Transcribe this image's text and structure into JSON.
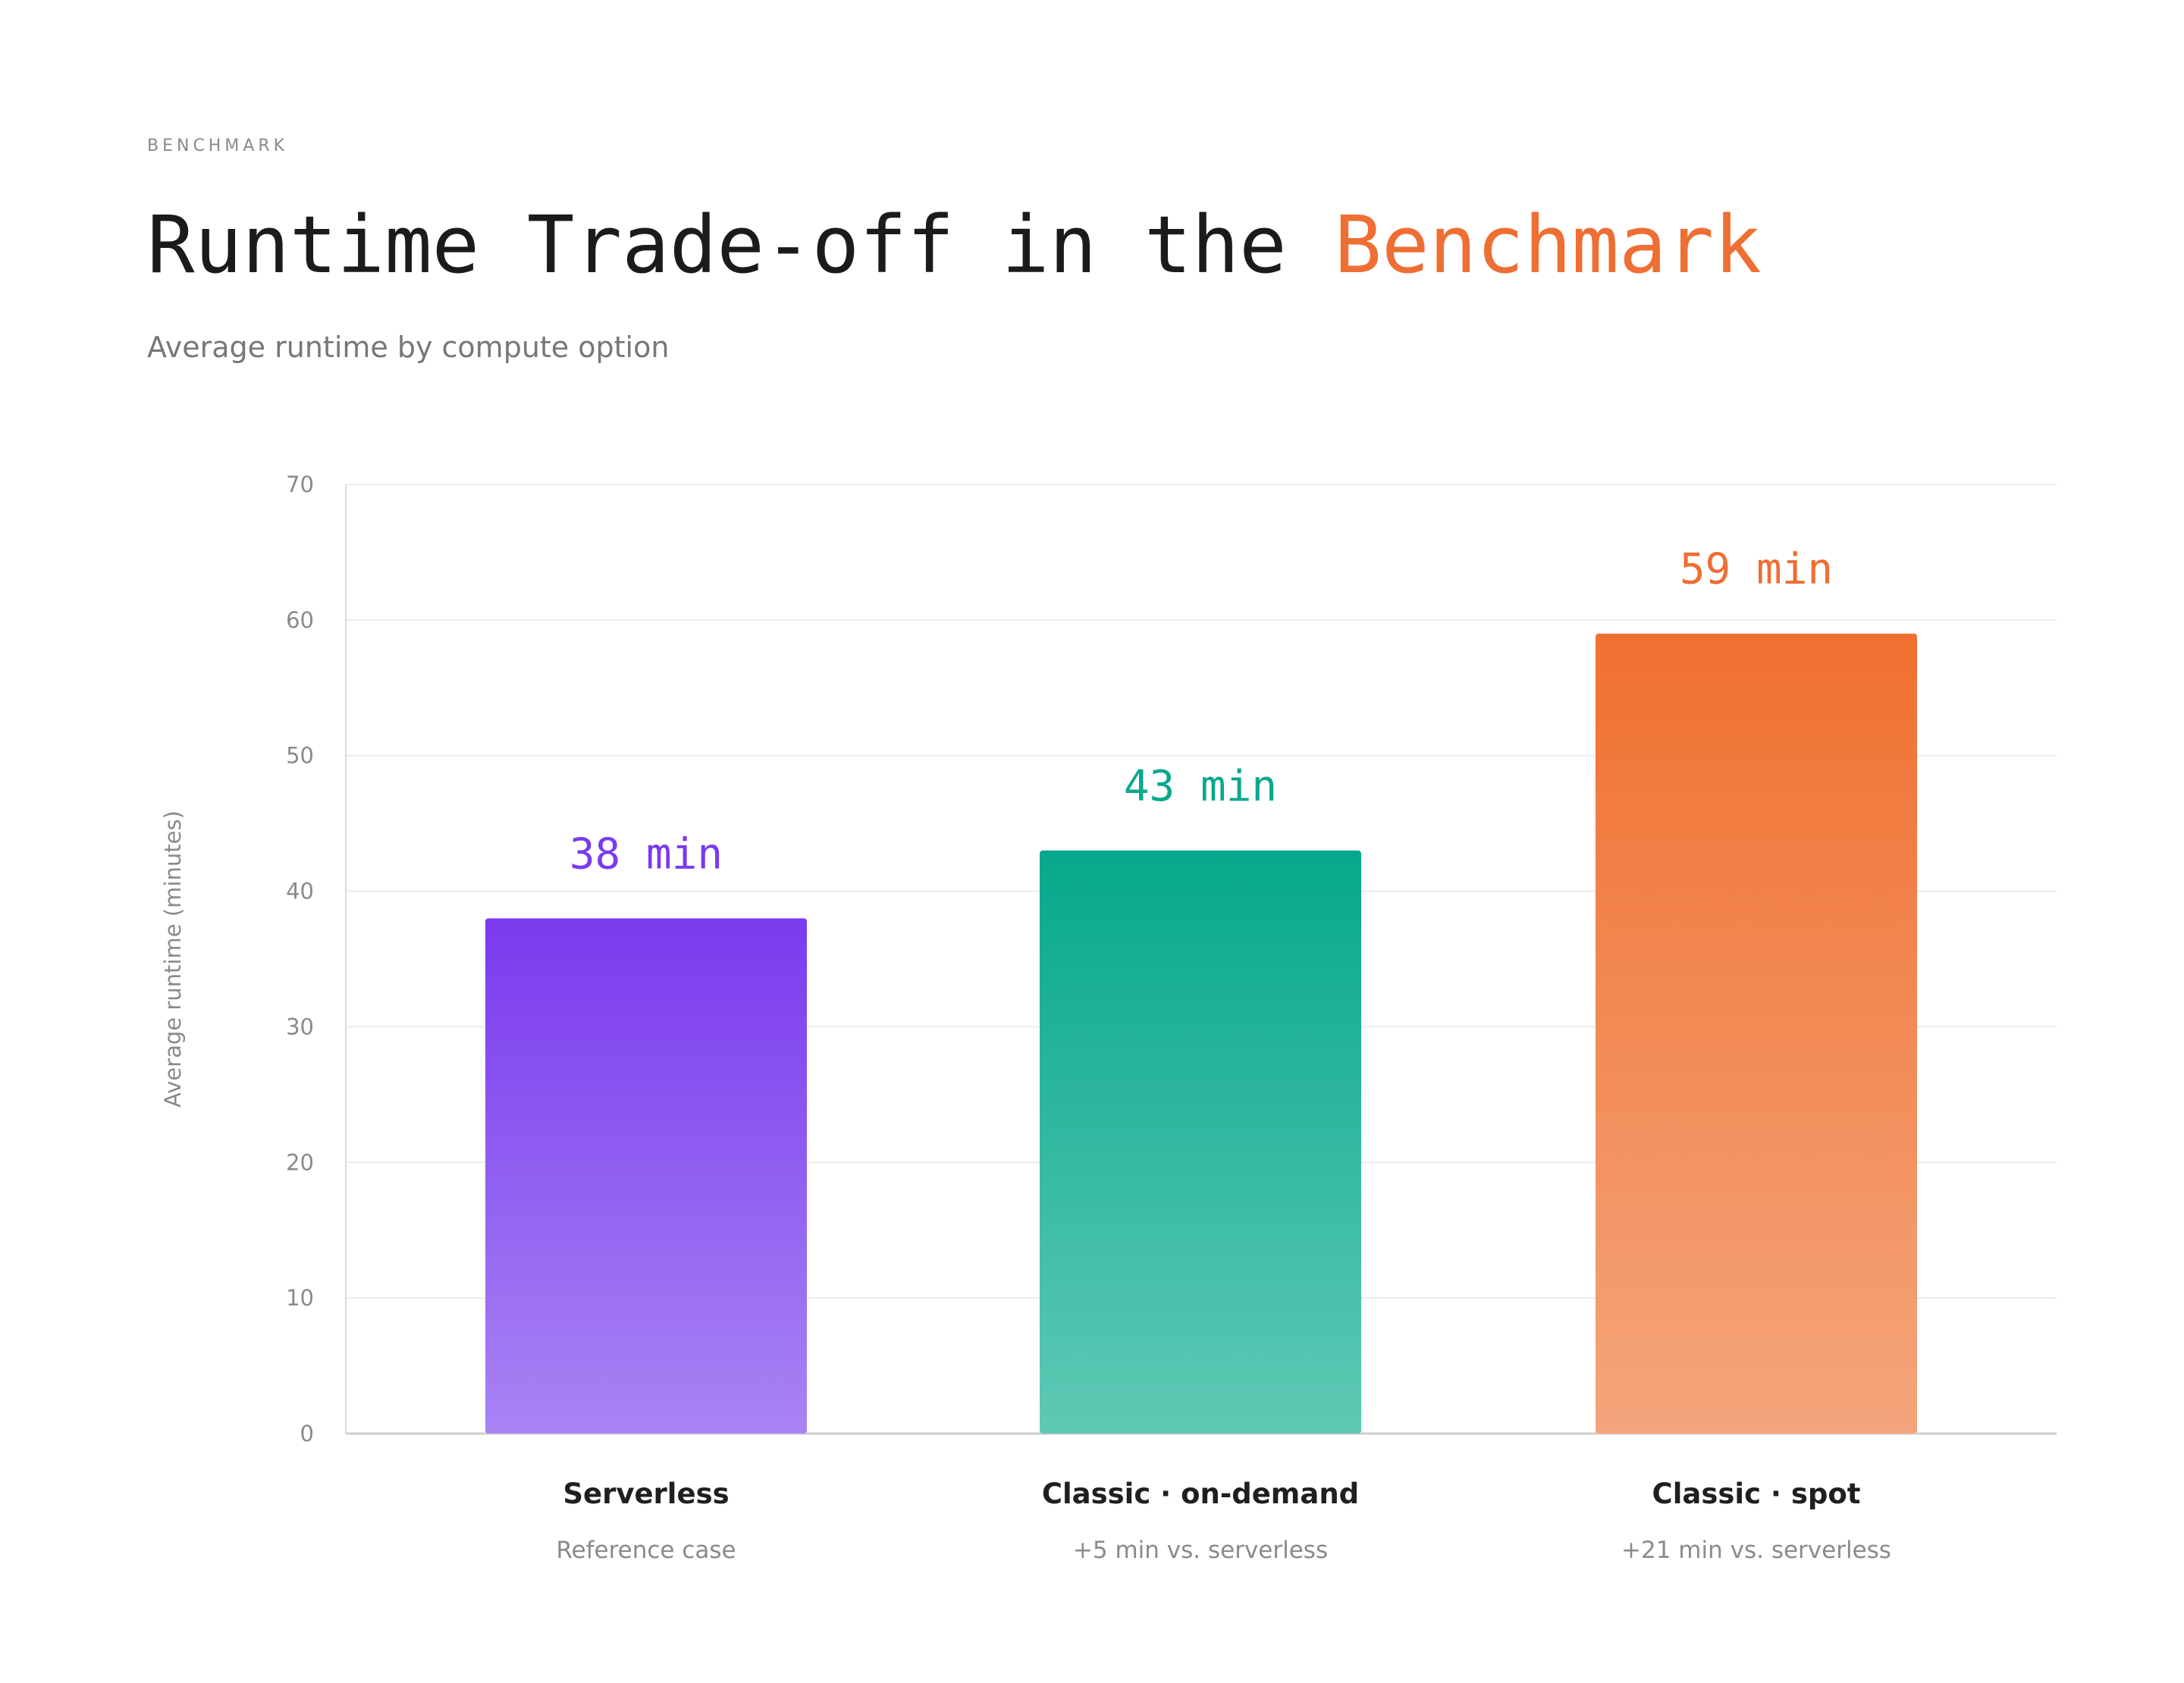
{
  "header": {
    "eyebrow": "BENCHMARK",
    "title_main": "Runtime Trade-off in the ",
    "title_accent": "Benchmark",
    "subtitle": "Average runtime by compute option"
  },
  "colors": {
    "accent": "#ee6e33",
    "serverless": "#7a3aee",
    "on_demand": "#0aa88e",
    "spot": "#f07030"
  },
  "chart_data": {
    "type": "bar",
    "categories": [
      "Serverless",
      "Classic · on-demand",
      "Classic · spot"
    ],
    "category_notes": [
      "Reference case",
      "+5 min vs. serverless",
      "+21 min vs. serverless"
    ],
    "values": [
      38,
      43,
      59
    ],
    "value_labels": [
      "38 min",
      "43 min",
      "59 min"
    ],
    "ylabel": "Average runtime (minutes)",
    "ylim": [
      0,
      70
    ],
    "yticks": [
      0,
      10,
      20,
      30,
      40,
      50,
      60,
      70
    ],
    "grid": true,
    "bar_colors": [
      {
        "top": "#7a3aee",
        "bottom": "#a884f4",
        "label": "#7a3aee"
      },
      {
        "top": "#06a88c",
        "bottom": "#5fc9b5",
        "label": "#0aa88e"
      },
      {
        "top": "#f07030",
        "bottom": "#f4a57c",
        "label": "#ee6e33"
      }
    ]
  }
}
